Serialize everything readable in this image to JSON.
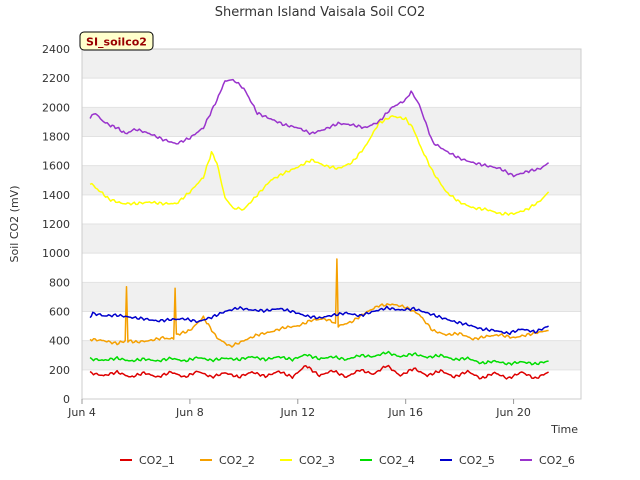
{
  "chart_data": {
    "type": "line",
    "title": "Sherman Island Vaisala Soil CO2",
    "site_label": "SI_soilco2",
    "xlabel": "Time",
    "ylabel": "Soil CO2 (mV)",
    "ylim": [
      0,
      2400
    ],
    "yticks": [
      0,
      200,
      400,
      600,
      800,
      1000,
      1200,
      1400,
      1600,
      1800,
      2000,
      2200,
      2400
    ],
    "xlim": [
      4.0,
      22.5
    ],
    "xticks": [
      {
        "value": 4,
        "label": "Jun 4"
      },
      {
        "value": 8,
        "label": "Jun 8"
      },
      {
        "value": 12,
        "label": "Jun 12"
      },
      {
        "value": 16,
        "label": "Jun 16"
      },
      {
        "value": 20,
        "label": "Jun 20"
      }
    ],
    "x_unit": "day of June",
    "grid": true,
    "legend_position": "bottom",
    "series": [
      {
        "name": "CO2_1",
        "color": "#dd0000",
        "x": [
          4.3,
          4.8,
          5.3,
          5.8,
          6.3,
          6.8,
          7.3,
          7.8,
          8.3,
          8.8,
          9.3,
          9.8,
          10.3,
          10.8,
          11.3,
          11.8,
          12.3,
          12.8,
          13.3,
          13.8,
          14.3,
          14.8,
          15.3,
          15.8,
          16.3,
          16.8,
          17.3,
          17.8,
          18.3,
          18.8,
          19.3,
          19.8,
          20.3,
          20.8,
          21.3
        ],
        "values": [
          180,
          160,
          185,
          150,
          180,
          150,
          185,
          150,
          190,
          150,
          180,
          150,
          185,
          155,
          190,
          150,
          230,
          160,
          195,
          150,
          200,
          170,
          230,
          160,
          210,
          160,
          195,
          150,
          190,
          140,
          180,
          140,
          185,
          140,
          185
        ]
      },
      {
        "name": "CO2_2",
        "color": "#f5a000",
        "x": [
          4.3,
          4.8,
          5.3,
          5.6,
          5.65,
          5.7,
          6.0,
          6.5,
          7.0,
          7.4,
          7.45,
          7.5,
          8.0,
          8.5,
          9.0,
          9.5,
          10.0,
          10.5,
          11.0,
          11.5,
          12.0,
          12.5,
          13.0,
          13.4,
          13.45,
          13.5,
          14.0,
          14.5,
          15.0,
          15.5,
          16.0,
          16.5,
          17.0,
          17.5,
          18.0,
          18.5,
          19.0,
          19.5,
          20.0,
          20.5,
          21.0,
          21.3
        ],
        "values": [
          410,
          400,
          380,
          400,
          770,
          400,
          390,
          400,
          420,
          410,
          760,
          440,
          470,
          560,
          420,
          360,
          400,
          440,
          460,
          490,
          500,
          540,
          550,
          520,
          960,
          500,
          530,
          590,
          640,
          650,
          630,
          580,
          470,
          440,
          450,
          410,
          430,
          440,
          420,
          440,
          460,
          470
        ]
      },
      {
        "name": "CO2_3",
        "color": "#ffff00",
        "x": [
          4.3,
          4.7,
          5.0,
          5.5,
          6.0,
          6.5,
          7.0,
          7.5,
          8.0,
          8.5,
          8.8,
          9.0,
          9.3,
          9.6,
          10.0,
          10.5,
          11.0,
          11.5,
          12.0,
          12.5,
          13.0,
          13.5,
          14.0,
          14.5,
          15.0,
          15.5,
          16.0,
          16.3,
          16.5,
          17.0,
          17.5,
          18.0,
          18.5,
          19.0,
          19.5,
          20.0,
          20.5,
          21.0,
          21.3
        ],
        "values": [
          1480,
          1420,
          1370,
          1340,
          1340,
          1350,
          1340,
          1340,
          1420,
          1520,
          1690,
          1620,
          1380,
          1310,
          1300,
          1400,
          1500,
          1550,
          1590,
          1640,
          1600,
          1580,
          1620,
          1730,
          1890,
          1940,
          1920,
          1850,
          1750,
          1560,
          1420,
          1350,
          1310,
          1300,
          1270,
          1270,
          1300,
          1360,
          1420
        ]
      },
      {
        "name": "CO2_4",
        "color": "#00dd00",
        "x": [
          4.3,
          4.8,
          5.3,
          5.8,
          6.3,
          6.8,
          7.3,
          7.8,
          8.3,
          8.8,
          9.3,
          9.8,
          10.3,
          10.8,
          11.3,
          11.8,
          12.3,
          12.8,
          13.3,
          13.8,
          14.3,
          14.8,
          15.3,
          15.8,
          16.3,
          16.8,
          17.3,
          17.8,
          18.3,
          18.8,
          19.3,
          19.8,
          20.3,
          20.8,
          21.3
        ],
        "values": [
          275,
          265,
          280,
          260,
          275,
          260,
          280,
          260,
          285,
          265,
          280,
          270,
          290,
          270,
          290,
          270,
          305,
          275,
          290,
          270,
          300,
          290,
          320,
          290,
          310,
          285,
          300,
          270,
          280,
          245,
          260,
          240,
          255,
          240,
          260
        ]
      },
      {
        "name": "CO2_5",
        "color": "#0000cc",
        "x": [
          4.3,
          4.4,
          4.8,
          5.3,
          5.8,
          6.3,
          6.8,
          7.3,
          7.8,
          8.3,
          8.8,
          9.3,
          9.8,
          10.3,
          10.8,
          11.3,
          11.8,
          12.3,
          12.8,
          13.3,
          13.8,
          14.3,
          14.8,
          15.3,
          15.8,
          16.3,
          16.8,
          17.3,
          17.8,
          18.3,
          18.8,
          19.3,
          19.8,
          20.3,
          20.8,
          21.3
        ],
        "values": [
          560,
          590,
          570,
          575,
          560,
          550,
          535,
          545,
          550,
          530,
          560,
          600,
          625,
          610,
          605,
          620,
          600,
          570,
          555,
          575,
          590,
          570,
          600,
          625,
          610,
          620,
          590,
          560,
          530,
          510,
          480,
          470,
          450,
          480,
          460,
          500
        ]
      },
      {
        "name": "CO2_6",
        "color": "#9933cc",
        "x": [
          4.3,
          4.5,
          4.8,
          5.0,
          5.3,
          5.6,
          6.0,
          6.5,
          7.0,
          7.5,
          8.0,
          8.5,
          9.0,
          9.3,
          9.6,
          10.0,
          10.5,
          11.0,
          11.5,
          12.0,
          12.5,
          13.0,
          13.5,
          14.0,
          14.5,
          15.0,
          15.5,
          16.0,
          16.2,
          16.5,
          17.0,
          17.5,
          18.0,
          18.5,
          19.0,
          19.5,
          20.0,
          20.5,
          21.0,
          21.3
        ],
        "values": [
          1930,
          1960,
          1900,
          1880,
          1860,
          1820,
          1850,
          1820,
          1780,
          1750,
          1790,
          1860,
          2050,
          2180,
          2190,
          2130,
          1960,
          1920,
          1880,
          1860,
          1820,
          1850,
          1890,
          1880,
          1860,
          1900,
          2000,
          2050,
          2110,
          2020,
          1760,
          1700,
          1650,
          1620,
          1600,
          1580,
          1530,
          1560,
          1580,
          1620
        ]
      }
    ]
  }
}
